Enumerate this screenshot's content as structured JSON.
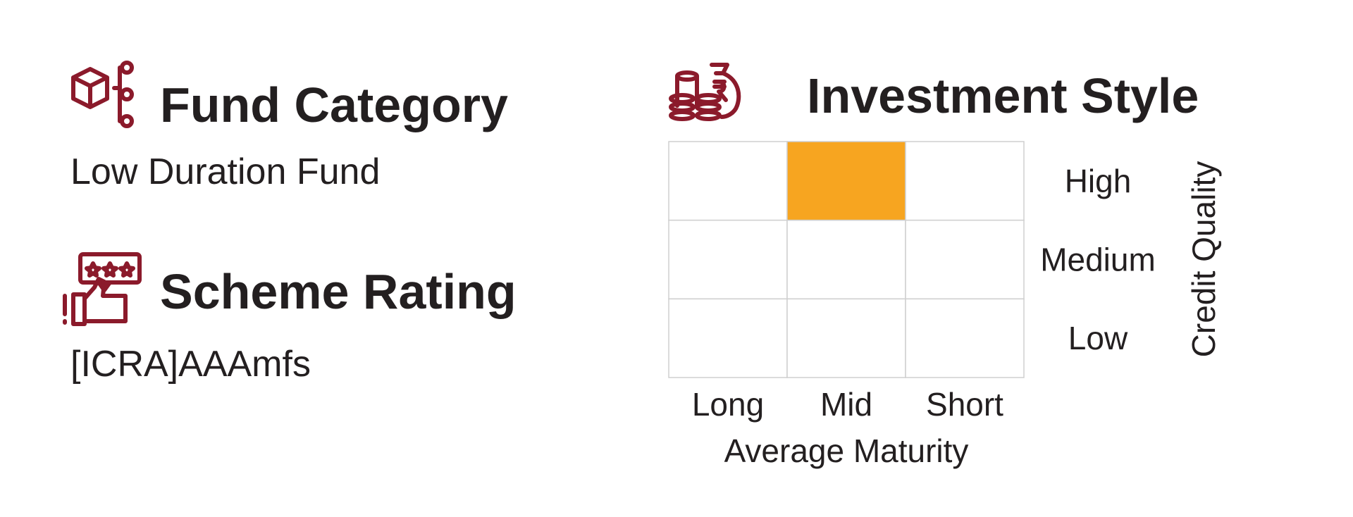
{
  "sections": [
    {
      "title": "Fund Category",
      "value": "Low Duration Fund"
    },
    {
      "title": "Scheme Rating",
      "value": "[ICRA]AAAmfs"
    }
  ],
  "style_box": {
    "title": "Investment Style",
    "rows": [
      "High",
      "Medium",
      "Low"
    ],
    "columns": [
      "Long",
      "Mid",
      "Short"
    ],
    "row_axis": "Credit Quality",
    "column_axis": "Average Maturity",
    "highlight": {
      "row": 0,
      "column": 1,
      "color": "#f7a520"
    }
  }
}
